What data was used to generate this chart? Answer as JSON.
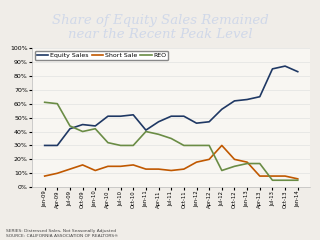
{
  "title_line1": "Share of Equity Sales Remained",
  "title_line2": "near the Recent Peak Level",
  "title_fontsize": 9.5,
  "header_color": "#2e4a7a",
  "x_labels": [
    "Jan-09",
    "Apr-09",
    "Jul-09",
    "Oct-09",
    "Jan-10",
    "Apr-10",
    "Jul-10",
    "Oct-10",
    "Jan-11",
    "Apr-11",
    "Jul-11",
    "Oct-11",
    "Jan-12",
    "Apr-12",
    "Jul-12",
    "Oct-12",
    "Jan-13",
    "Apr-13",
    "Jul-13",
    "Oct-13",
    "Jan-14"
  ],
  "equity_sales": [
    30,
    30,
    42,
    45,
    44,
    51,
    51,
    52,
    41,
    47,
    51,
    51,
    46,
    47,
    56,
    62,
    63,
    65,
    85,
    87,
    83
  ],
  "short_sale": [
    8,
    10,
    13,
    16,
    12,
    15,
    15,
    16,
    13,
    13,
    12,
    13,
    18,
    20,
    30,
    20,
    18,
    8,
    8,
    8,
    6
  ],
  "reo": [
    61,
    60,
    44,
    40,
    42,
    32,
    30,
    30,
    40,
    38,
    35,
    30,
    30,
    30,
    12,
    15,
    17,
    17,
    5,
    5,
    5
  ],
  "equity_color": "#1f3864",
  "short_color": "#c05800",
  "reo_color": "#6a8c45",
  "ylim": [
    0,
    100
  ],
  "ylabel_vals": [
    0,
    10,
    20,
    30,
    40,
    50,
    60,
    70,
    80,
    90,
    100
  ],
  "source_text": "SERIES: Distressed Sales, Not Seasonally Adjusted\nSOURCE: CALIFORNIA ASSOCIATION OF REALTORS®",
  "legend_labels": [
    "Equity Sales",
    "Short Sale",
    "REO"
  ],
  "bg_color": "#f0ede8",
  "plot_bg": "#f8f6f2"
}
